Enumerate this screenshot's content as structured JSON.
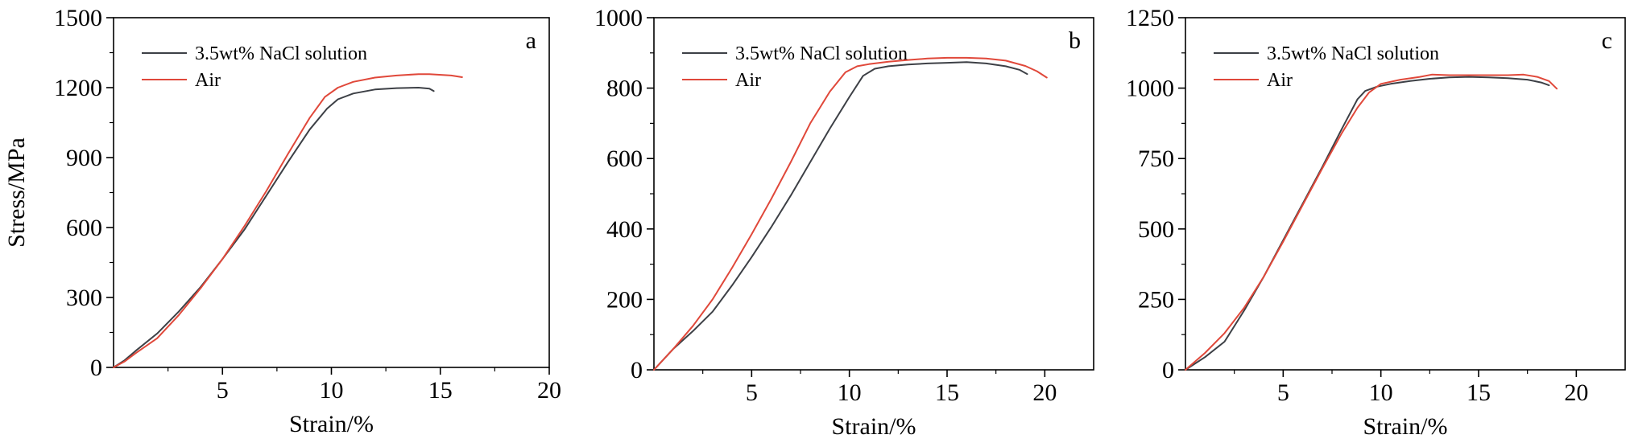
{
  "colors": {
    "nacl": "#3d4046",
    "air": "#e0483a",
    "axis": "#000000"
  },
  "chart_data": [
    {
      "type": "line",
      "panel_label": "a",
      "xlabel": "Strain/%",
      "ylabel": "Stress/MPa",
      "xlim": [
        0,
        20
      ],
      "ylim": [
        0,
        1500
      ],
      "x_ticks": [
        5,
        10,
        15,
        20
      ],
      "x_tick_labels": [
        "5",
        "10",
        "15",
        "20"
      ],
      "y_ticks": [
        0,
        300,
        600,
        900,
        1200,
        1500
      ],
      "y_tick_labels": [
        "0",
        "300",
        "600",
        "900",
        "1200",
        "1500"
      ],
      "grid": false,
      "legend_position": "top-left",
      "series": [
        {
          "name": "3.5wt% NaCl solution",
          "color_key": "nacl",
          "points": [
            [
              0,
              0
            ],
            [
              0.5,
              30
            ],
            [
              1,
              70
            ],
            [
              2,
              145
            ],
            [
              3,
              240
            ],
            [
              4,
              345
            ],
            [
              5,
              465
            ],
            [
              6,
              590
            ],
            [
              7,
              735
            ],
            [
              8,
              880
            ],
            [
              9,
              1020
            ],
            [
              9.8,
              1110
            ],
            [
              10.3,
              1150
            ],
            [
              11,
              1175
            ],
            [
              12,
              1192
            ],
            [
              13,
              1198
            ],
            [
              14,
              1200
            ],
            [
              14.5,
              1196
            ],
            [
              14.7,
              1185
            ]
          ]
        },
        {
          "name": "Air",
          "color_key": "air",
          "points": [
            [
              0,
              0
            ],
            [
              0.5,
              25
            ],
            [
              1,
              60
            ],
            [
              2,
              125
            ],
            [
              3,
              225
            ],
            [
              4,
              340
            ],
            [
              5,
              465
            ],
            [
              6,
              605
            ],
            [
              7,
              755
            ],
            [
              8,
              915
            ],
            [
              9,
              1070
            ],
            [
              9.7,
              1160
            ],
            [
              10.3,
              1200
            ],
            [
              11,
              1225
            ],
            [
              12,
              1243
            ],
            [
              13,
              1252
            ],
            [
              14,
              1258
            ],
            [
              14.5,
              1258
            ],
            [
              15.5,
              1252
            ],
            [
              16,
              1245
            ]
          ]
        }
      ]
    },
    {
      "type": "line",
      "panel_label": "b",
      "xlabel": "Strain/%",
      "ylabel": "",
      "xlim": [
        0,
        22.5
      ],
      "ylim": [
        0,
        1000
      ],
      "x_ticks": [
        5,
        10,
        15,
        20
      ],
      "x_tick_labels": [
        "5",
        "10",
        "15",
        "20"
      ],
      "y_ticks": [
        0,
        200,
        400,
        600,
        800,
        1000
      ],
      "y_tick_labels": [
        "0",
        "200",
        "400",
        "600",
        "800",
        "1000"
      ],
      "grid": false,
      "legend_position": "top-left",
      "series": [
        {
          "name": "3.5wt% NaCl solution",
          "color_key": "nacl",
          "points": [
            [
              0,
              0
            ],
            [
              1,
              60
            ],
            [
              2,
              110
            ],
            [
              3,
              165
            ],
            [
              4,
              240
            ],
            [
              5,
              320
            ],
            [
              6,
              405
            ],
            [
              7,
              495
            ],
            [
              8,
              590
            ],
            [
              9,
              685
            ],
            [
              10,
              775
            ],
            [
              10.7,
              835
            ],
            [
              11.3,
              855
            ],
            [
              12,
              862
            ],
            [
              13,
              867
            ],
            [
              14,
              870
            ],
            [
              15,
              872
            ],
            [
              16,
              874
            ],
            [
              17,
              870
            ],
            [
              18,
              862
            ],
            [
              18.7,
              852
            ],
            [
              19.1,
              840
            ]
          ]
        },
        {
          "name": "Air",
          "color_key": "air",
          "points": [
            [
              0,
              0
            ],
            [
              1,
              60
            ],
            [
              2,
              125
            ],
            [
              3,
              200
            ],
            [
              4,
              290
            ],
            [
              5,
              385
            ],
            [
              6,
              485
            ],
            [
              7,
              590
            ],
            [
              8,
              700
            ],
            [
              9,
              790
            ],
            [
              9.8,
              845
            ],
            [
              10.4,
              862
            ],
            [
              11,
              868
            ],
            [
              12,
              875
            ],
            [
              13,
              880
            ],
            [
              14,
              884
            ],
            [
              15,
              886
            ],
            [
              16,
              886
            ],
            [
              17,
              884
            ],
            [
              18,
              878
            ],
            [
              19,
              863
            ],
            [
              19.6,
              848
            ],
            [
              20.1,
              830
            ]
          ]
        }
      ]
    },
    {
      "type": "line",
      "panel_label": "c",
      "xlabel": "Strain/%",
      "ylabel": "",
      "xlim": [
        0,
        22.5
      ],
      "ylim": [
        0,
        1250
      ],
      "x_ticks": [
        5,
        10,
        15,
        20
      ],
      "x_tick_labels": [
        "5",
        "10",
        "15",
        "20"
      ],
      "y_ticks": [
        0,
        250,
        500,
        750,
        1000,
        1250
      ],
      "y_tick_labels": [
        "0",
        "250",
        "500",
        "750",
        "1000",
        "1250"
      ],
      "grid": false,
      "legend_position": "top-left",
      "series": [
        {
          "name": "3.5wt% NaCl solution",
          "color_key": "nacl",
          "points": [
            [
              0,
              0
            ],
            [
              1,
              45
            ],
            [
              2,
              100
            ],
            [
              3,
              210
            ],
            [
              4,
              330
            ],
            [
              5,
              460
            ],
            [
              6,
              590
            ],
            [
              7,
              720
            ],
            [
              8,
              855
            ],
            [
              8.8,
              960
            ],
            [
              9.2,
              990
            ],
            [
              9.8,
              1005
            ],
            [
              10.5,
              1015
            ],
            [
              11.5,
              1025
            ],
            [
              12.5,
              1033
            ],
            [
              13.5,
              1038
            ],
            [
              14.5,
              1040
            ],
            [
              15.5,
              1038
            ],
            [
              16.5,
              1035
            ],
            [
              17.5,
              1030
            ],
            [
              18.2,
              1020
            ],
            [
              18.6,
              1010
            ]
          ]
        },
        {
          "name": "Air",
          "color_key": "air",
          "points": [
            [
              0,
              0
            ],
            [
              1,
              60
            ],
            [
              2,
              130
            ],
            [
              3,
              220
            ],
            [
              4,
              330
            ],
            [
              5,
              455
            ],
            [
              6,
              585
            ],
            [
              7,
              715
            ],
            [
              8,
              840
            ],
            [
              8.8,
              930
            ],
            [
              9.4,
              985
            ],
            [
              10,
              1015
            ],
            [
              11,
              1030
            ],
            [
              12,
              1040
            ],
            [
              12.6,
              1048
            ],
            [
              13.5,
              1046
            ],
            [
              14.5,
              1046
            ],
            [
              15.5,
              1046
            ],
            [
              16.5,
              1046
            ],
            [
              17.3,
              1048
            ],
            [
              18,
              1040
            ],
            [
              18.6,
              1025
            ],
            [
              19,
              998
            ]
          ]
        }
      ]
    }
  ]
}
